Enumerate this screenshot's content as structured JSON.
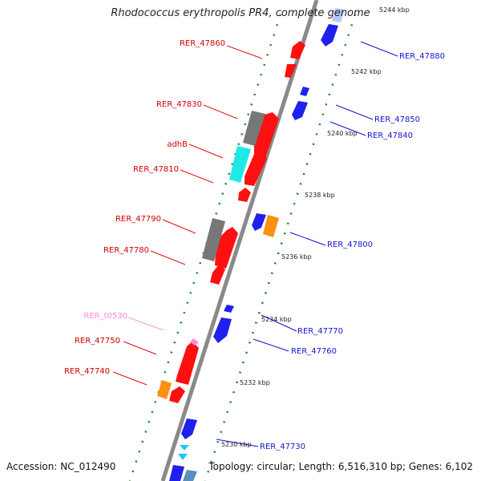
{
  "title": "Rhodococcus erythropolis PR4, complete genome",
  "footer": {
    "accession": "Accession: NC_012490",
    "topology": "Topology: circular; Length: 6,516,310 bp; Genes: 6,102"
  },
  "colors": {
    "forward": "#ff1010",
    "reverse": "#1010ee",
    "gray": "#777777",
    "cyan": "#20e8e8",
    "orange": "#ff9010",
    "trna": "#ff8acd",
    "backbone": "#888888",
    "dots": "#1a8a1a"
  },
  "ticks": [
    {
      "label": "5244 kbp"
    },
    {
      "label": "5242 kbp"
    },
    {
      "label": "5240 kbp"
    },
    {
      "label": "5238 kbp"
    },
    {
      "label": "5236 kbp"
    },
    {
      "label": "5234 kbp"
    },
    {
      "label": "5232 kbp"
    },
    {
      "label": "5230 kbp"
    }
  ],
  "genes_left": [
    {
      "name": "RER_47860",
      "color": "red"
    },
    {
      "name": "RER_47830",
      "color": "red"
    },
    {
      "name": "adhB",
      "color": "red"
    },
    {
      "name": "RER_47810",
      "color": "red"
    },
    {
      "name": "RER_47790",
      "color": "red"
    },
    {
      "name": "RER_47780",
      "color": "red"
    },
    {
      "name": "RER_t0530",
      "color": "pink"
    },
    {
      "name": "RER_47750",
      "color": "red"
    },
    {
      "name": "RER_47740",
      "color": "red"
    }
  ],
  "genes_right": [
    {
      "name": "RER_47880",
      "color": "blue"
    },
    {
      "name": "RER_47850",
      "color": "blue"
    },
    {
      "name": "RER_47840",
      "color": "blue"
    },
    {
      "name": "RER_47800",
      "color": "blue"
    },
    {
      "name": "RER_47770",
      "color": "blue"
    },
    {
      "name": "RER_47760",
      "color": "blue"
    },
    {
      "name": "RER_47730",
      "color": "blue"
    }
  ]
}
